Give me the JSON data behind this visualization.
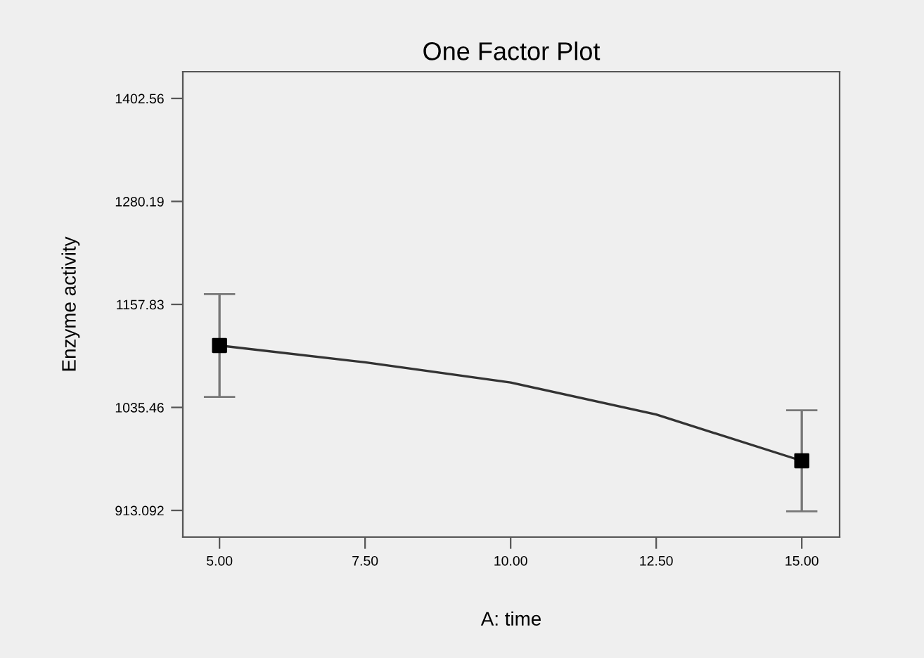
{
  "chart_data": {
    "type": "line",
    "title": "One Factor Plot",
    "xlabel": "A: time",
    "ylabel": "Enzyme activity",
    "xlim": [
      4.37,
      15.65
    ],
    "xticks": [
      {
        "value": 5,
        "label": "5.00"
      },
      {
        "value": 7.5,
        "label": "7.50"
      },
      {
        "value": 10,
        "label": "10.00"
      },
      {
        "value": 12.5,
        "label": "12.50"
      },
      {
        "value": 15,
        "label": "15.00"
      }
    ],
    "ylim": [
      881.4,
      1434.3
    ],
    "yticks": [
      913.092,
      1035.46,
      1157.83,
      1280.19,
      1402.56
    ],
    "grid": false,
    "legend": false,
    "series": [
      {
        "color": "#333333",
        "marker": "none",
        "x": [
          5,
          7.5,
          10,
          12.5,
          15
        ],
        "values": [
          1109,
          1089,
          1065,
          1027,
          972
        ]
      },
      {
        "type": "scatter",
        "color": "#000000",
        "marker": "square",
        "x": [
          5,
          15
        ],
        "values": [
          1109,
          972
        ],
        "errors": [
          61,
          60
        ]
      }
    ]
  }
}
